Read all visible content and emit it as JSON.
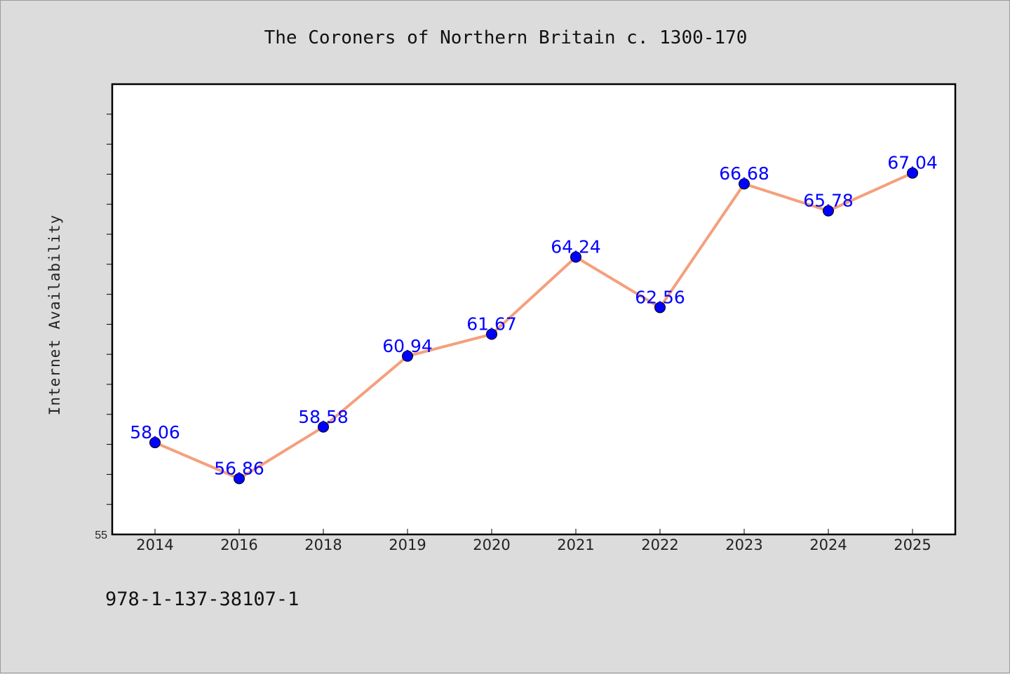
{
  "chart_data": {
    "type": "line",
    "title": "The Coroners of Northern Britain c. 1300-170",
    "xlabel": "",
    "ylabel": "Internet Availability",
    "categories": [
      "2014",
      "2016",
      "2018",
      "2019",
      "2020",
      "2021",
      "2022",
      "2023",
      "2024",
      "2025"
    ],
    "series": [
      {
        "values": [
          58.06,
          56.86,
          58.58,
          60.94,
          61.67,
          64.24,
          62.56,
          66.68,
          65.78,
          67.04
        ],
        "labels": [
          "58.06",
          "56.86",
          "58.58",
          "60.94",
          "61.67",
          "64.24",
          "62.56",
          "66.68",
          "65.78",
          "67.04"
        ],
        "line_color": "#f4a07c",
        "marker_color": "#0000ff",
        "label_color": "#0000ff"
      }
    ],
    "ylim": [
      55,
      70
    ],
    "ytick_labels": [
      "55"
    ],
    "minor_ytick_step": 1,
    "grid": false,
    "legend": "none"
  },
  "footer": {
    "isbn": "978-1-137-38107-1"
  }
}
